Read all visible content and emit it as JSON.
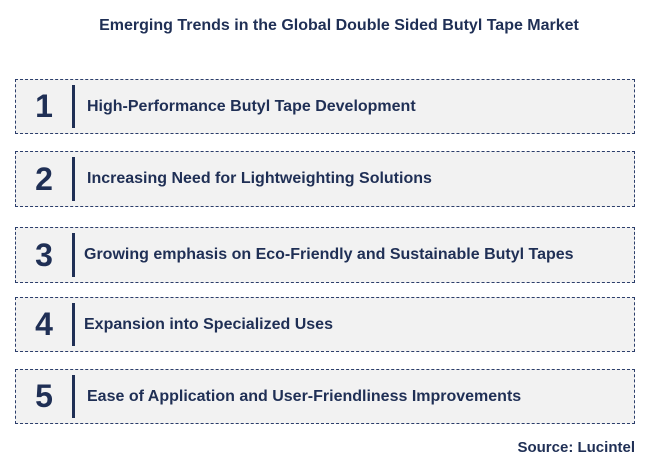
{
  "title": "Emerging Trends in the Global Double Sided Butyl Tape Market",
  "items": [
    {
      "number": "1",
      "label": "High-Performance Butyl Tape Development"
    },
    {
      "number": "2",
      "label": "Increasing Need for Lightweighting Solutions"
    },
    {
      "number": "3",
      "label": "Growing emphasis on Eco-Friendly and Sustainable Butyl Tapes"
    },
    {
      "number": "4",
      "label": "Expansion into Specialized Uses"
    },
    {
      "number": "5",
      "label": "Ease of Application and User-Friendliness Improvements"
    }
  ],
  "source": "Source: Lucintel",
  "colors": {
    "text": "#1f2f55",
    "box_fill": "#f2f2f2",
    "border": "#2c3e6b"
  }
}
